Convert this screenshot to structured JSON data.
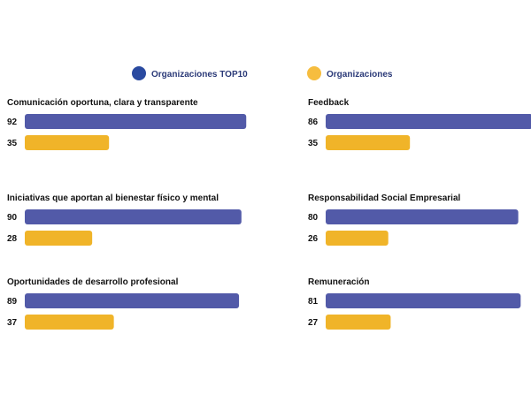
{
  "colors": {
    "top10": "#525aa8",
    "org": "#f0b429",
    "legend_top10_dot": "#2a4aa0",
    "legend_org_dot": "#f6bd3f"
  },
  "chart_data": {
    "type": "bar",
    "orientation": "horizontal",
    "series_names": [
      "Organizaciones TOP10",
      "Organizaciones"
    ],
    "scale_max": 100,
    "panels": [
      {
        "title": "Comunicación oportuna, clara y transparente",
        "values": [
          92,
          35
        ]
      },
      {
        "title": "Feedback",
        "values": [
          86,
          35
        ]
      },
      {
        "title": "Iniciativas que aportan al bienestar físico y mental",
        "values": [
          90,
          28
        ]
      },
      {
        "title": "Responsabilidad Social Empresarial",
        "values": [
          80,
          26
        ]
      },
      {
        "title": "Oportunidades de desarrollo profesional",
        "values": [
          89,
          37
        ]
      },
      {
        "title": "Remuneración",
        "values": [
          81,
          27
        ]
      }
    ]
  }
}
